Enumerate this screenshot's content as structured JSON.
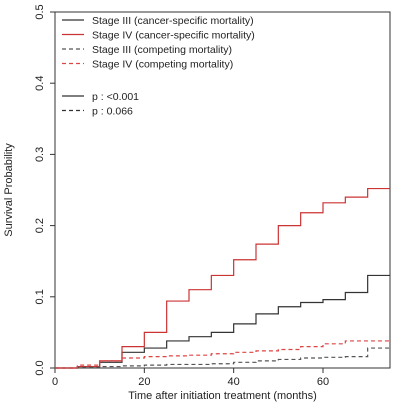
{
  "chart_data": {
    "type": "line",
    "title": "",
    "xlabel": "Time after initiation treatment (months)",
    "ylabel": "Survival Probability",
    "xlim": [
      0,
      75
    ],
    "ylim": [
      0,
      0.5
    ],
    "x_ticks": [
      0,
      20,
      40,
      60
    ],
    "y_ticks": [
      0.0,
      0.1,
      0.2,
      0.3,
      0.4,
      0.5
    ],
    "x_tick_labels": [
      "0",
      "20",
      "40",
      "60"
    ],
    "y_tick_labels": [
      "0.0",
      "0.1",
      "0.2",
      "0.3",
      "0.4",
      "0.5"
    ],
    "grid": false,
    "legend_position": "top-left",
    "series": [
      {
        "name": "Stage III (cancer-specific mortality)",
        "color": "#333333",
        "dash": "solid",
        "x": [
          0,
          5,
          10,
          15,
          20,
          25,
          30,
          35,
          40,
          45,
          50,
          55,
          60,
          65,
          70,
          75
        ],
        "y": [
          0.0,
          0.002,
          0.008,
          0.022,
          0.028,
          0.038,
          0.044,
          0.05,
          0.062,
          0.076,
          0.086,
          0.092,
          0.096,
          0.106,
          0.13,
          0.13
        ]
      },
      {
        "name": "Stage IV (cancer-specific mortality)",
        "color": "#cc3333",
        "dash": "solid",
        "x": [
          0,
          5,
          10,
          15,
          20,
          25,
          30,
          35,
          40,
          45,
          50,
          55,
          60,
          65,
          70,
          75
        ],
        "y": [
          0.0,
          0.002,
          0.01,
          0.03,
          0.05,
          0.094,
          0.11,
          0.13,
          0.152,
          0.174,
          0.2,
          0.218,
          0.232,
          0.24,
          0.252,
          0.252
        ]
      },
      {
        "name": "Stage III (competing mortality)",
        "color": "#555555",
        "dash": "dashed",
        "x": [
          0,
          5,
          10,
          15,
          20,
          25,
          30,
          35,
          40,
          45,
          50,
          55,
          60,
          65,
          70,
          75
        ],
        "y": [
          0.0,
          0.001,
          0.002,
          0.003,
          0.004,
          0.005,
          0.005,
          0.006,
          0.008,
          0.01,
          0.012,
          0.014,
          0.015,
          0.016,
          0.028,
          0.028
        ]
      },
      {
        "name": "Stage IV (competing mortality)",
        "color": "#dd4444",
        "dash": "dashed",
        "x": [
          0,
          5,
          10,
          15,
          20,
          25,
          30,
          35,
          40,
          45,
          50,
          55,
          60,
          65,
          70,
          75
        ],
        "y": [
          0.0,
          0.004,
          0.01,
          0.014,
          0.016,
          0.017,
          0.018,
          0.02,
          0.022,
          0.024,
          0.026,
          0.03,
          0.034,
          0.038,
          0.038,
          0.038
        ]
      }
    ],
    "pvalue_legend": [
      {
        "label": "p : <0.001",
        "color": "#333333",
        "dash": "solid"
      },
      {
        "label": "p : 0.066",
        "color": "#333333",
        "dash": "dashed"
      }
    ]
  }
}
